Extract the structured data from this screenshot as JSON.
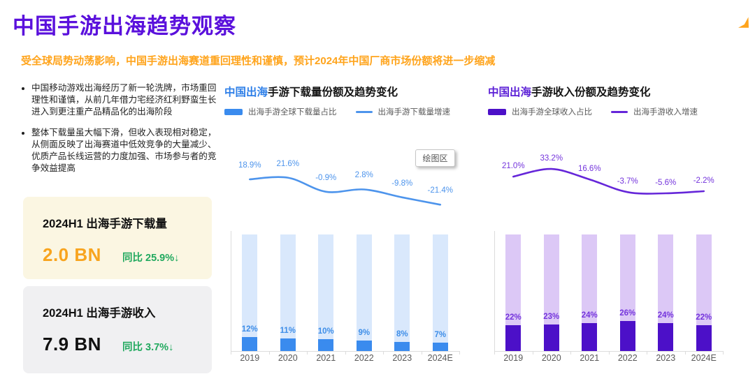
{
  "header": {
    "title": "中国手游出海趋势观察",
    "subtitle": "受全球局势动荡影响，中国手游出海赛道重回理性和谨慎，预计2024年中国厂商市场份额将进一步缩减",
    "title_color": "#5A10DC",
    "subtitle_color": "#FFA41C",
    "brand_icon": "orange-corner-mark",
    "brand_color": "#FFA41C"
  },
  "insights": {
    "bullets": [
      "中国移动游戏出海经历了新一轮洗牌，市场重回理性和谨慎，从前几年借力宅经济红利野蛮生长进入到更注重产品精品化的出海阶段",
      "整体下载量虽大幅下滑，但收入表现相对稳定，从侧面反映了出海赛道中低效竞争的大量减少、优质产品长线运营的力度加强、市场参与者的竞争效益提高"
    ]
  },
  "stat_cards": [
    {
      "title": "2024H1 出海手游下载量",
      "value": "2.0 BN",
      "yoy": "同比 25.9%↓",
      "bg": "#FBF6E2",
      "value_color": "#F8A41E",
      "yoy_color": "#22A95F"
    },
    {
      "title": "2024H1 出海手游收入",
      "value": "7.9 BN",
      "yoy": "同比 3.7%↓",
      "bg": "#F0F0F2",
      "value_color": "#111111",
      "yoy_color": "#22A95F"
    }
  ],
  "chart_data": [
    {
      "type": "bar+line",
      "title_highlight": "中国出海",
      "title_rest": "手游下载量份额及趋势变化",
      "title_highlight_color": "#2E7FE8",
      "categories": [
        "2019",
        "2020",
        "2021",
        "2022",
        "2023",
        "2024E"
      ],
      "series": [
        {
          "name": "出海手游全球下载量占比",
          "type": "bar",
          "unit": "%",
          "values": [
            12,
            11,
            10,
            9,
            8,
            7
          ],
          "labels": [
            "12%",
            "11%",
            "10%",
            "9%",
            "8%",
            "7%"
          ]
        },
        {
          "name": "出海手游下载量增速",
          "type": "line",
          "unit": "%",
          "values": [
            18.9,
            21.6,
            -0.9,
            2.8,
            -9.8,
            -21.4
          ],
          "labels": [
            "18.9%",
            "21.6%",
            "-0.9%",
            "2.8%",
            "-9.8%",
            "-21.4%"
          ]
        }
      ],
      "bar_axis_max": 100,
      "grid": false,
      "legend_position": "top",
      "tooltip": "绘图区",
      "colors": {
        "bar": "#3A8BEE",
        "bar_track": "#D9E8FC",
        "line": "#4D94EC",
        "bar_label": "#3E8EE8",
        "line_label": "#4D94EC"
      }
    },
    {
      "type": "bar+line",
      "title_highlight": "中国出海",
      "title_rest": "手游收入份额及趋势变化",
      "title_highlight_color": "#5B1FD6",
      "categories": [
        "2019",
        "2020",
        "2021",
        "2022",
        "2023",
        "2024E"
      ],
      "series": [
        {
          "name": "出海手游全球收入占比",
          "type": "bar",
          "unit": "%",
          "values": [
            22,
            23,
            24,
            26,
            24,
            22
          ],
          "labels": [
            "22%",
            "23%",
            "24%",
            "26%",
            "24%",
            "22%"
          ]
        },
        {
          "name": "出海手游收入增速",
          "type": "line",
          "unit": "%",
          "values": [
            21.0,
            33.2,
            16.6,
            -3.7,
            -5.6,
            -2.2
          ],
          "labels": [
            "21.0%",
            "33.2%",
            "16.6%",
            "-3.7%",
            "-5.6%",
            "-2.2%"
          ]
        }
      ],
      "bar_axis_max": 100,
      "grid": false,
      "legend_position": "top",
      "tooltip": null,
      "colors": {
        "bar": "#4C10C8",
        "bar_track": "#DCC8F6",
        "line": "#6526D9",
        "bar_label": "#7434DC",
        "line_label": "#7434DC"
      }
    }
  ]
}
